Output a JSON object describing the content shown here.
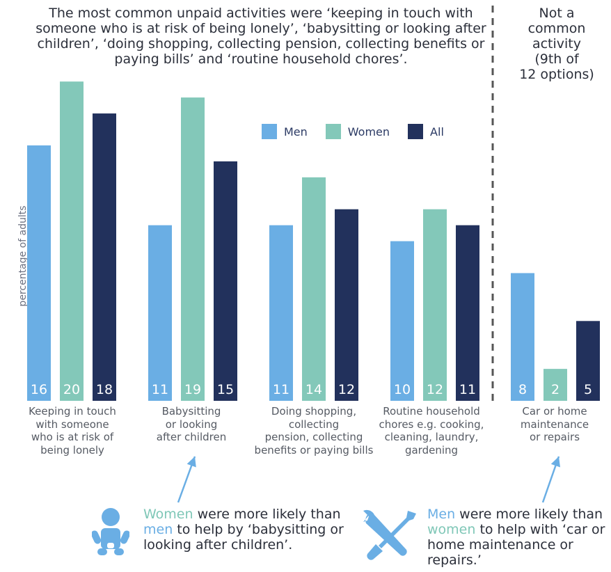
{
  "title": "The most common unpaid activities were ‘keeping in touch with someone who is at risk of being lonely’, ‘babysitting or looking after children’, ‘doing shopping, collecting pension, collecting benefits or paying bills’ and ‘routine household chores’.",
  "side_note": [
    "Not a",
    "common",
    "activity",
    "(9th of",
    "12 options)"
  ],
  "colors": {
    "men": "#6aaee4",
    "women": "#83c8b9",
    "all": "#22315c",
    "divider": "#555555",
    "arrow": "#6aaee4"
  },
  "chart_data": {
    "type": "bar",
    "ylabel": "percentage of adults",
    "ylim": [
      0,
      20.4
    ],
    "categories": [
      "Keeping in touch\nwith someone\nwho is at risk of\nbeing lonely",
      "Babysitting\nor looking\nafter children",
      "Doing shopping,\ncollecting\npension, collecting\nbenefits or paying bills",
      "Routine household\nchores e.g. cooking,\ncleaning, laundry,\ngardening",
      "Car or home\nmaintenance\nor repairs"
    ],
    "series": [
      {
        "name": "Men",
        "values": [
          16,
          11,
          11,
          10,
          8
        ]
      },
      {
        "name": "Women",
        "values": [
          20,
          19,
          14,
          12,
          2
        ]
      },
      {
        "name": "All",
        "values": [
          18,
          15,
          12,
          11,
          5
        ]
      }
    ],
    "legend_position": "top-center",
    "grid": false
  },
  "callouts": {
    "women": {
      "highlight": "Women",
      "rest1": " were more likely than",
      "highlight2": "men",
      "rest2": " to help by ‘babysitting or looking after children’."
    },
    "men": {
      "highlight": "Men",
      "rest1": " were more likely than",
      "highlight2": "women",
      "rest2": " to help with ‘car or home maintenance or repairs.’"
    }
  },
  "icons": {
    "women_callout": "baby-icon",
    "men_callout": "tools-icon"
  }
}
